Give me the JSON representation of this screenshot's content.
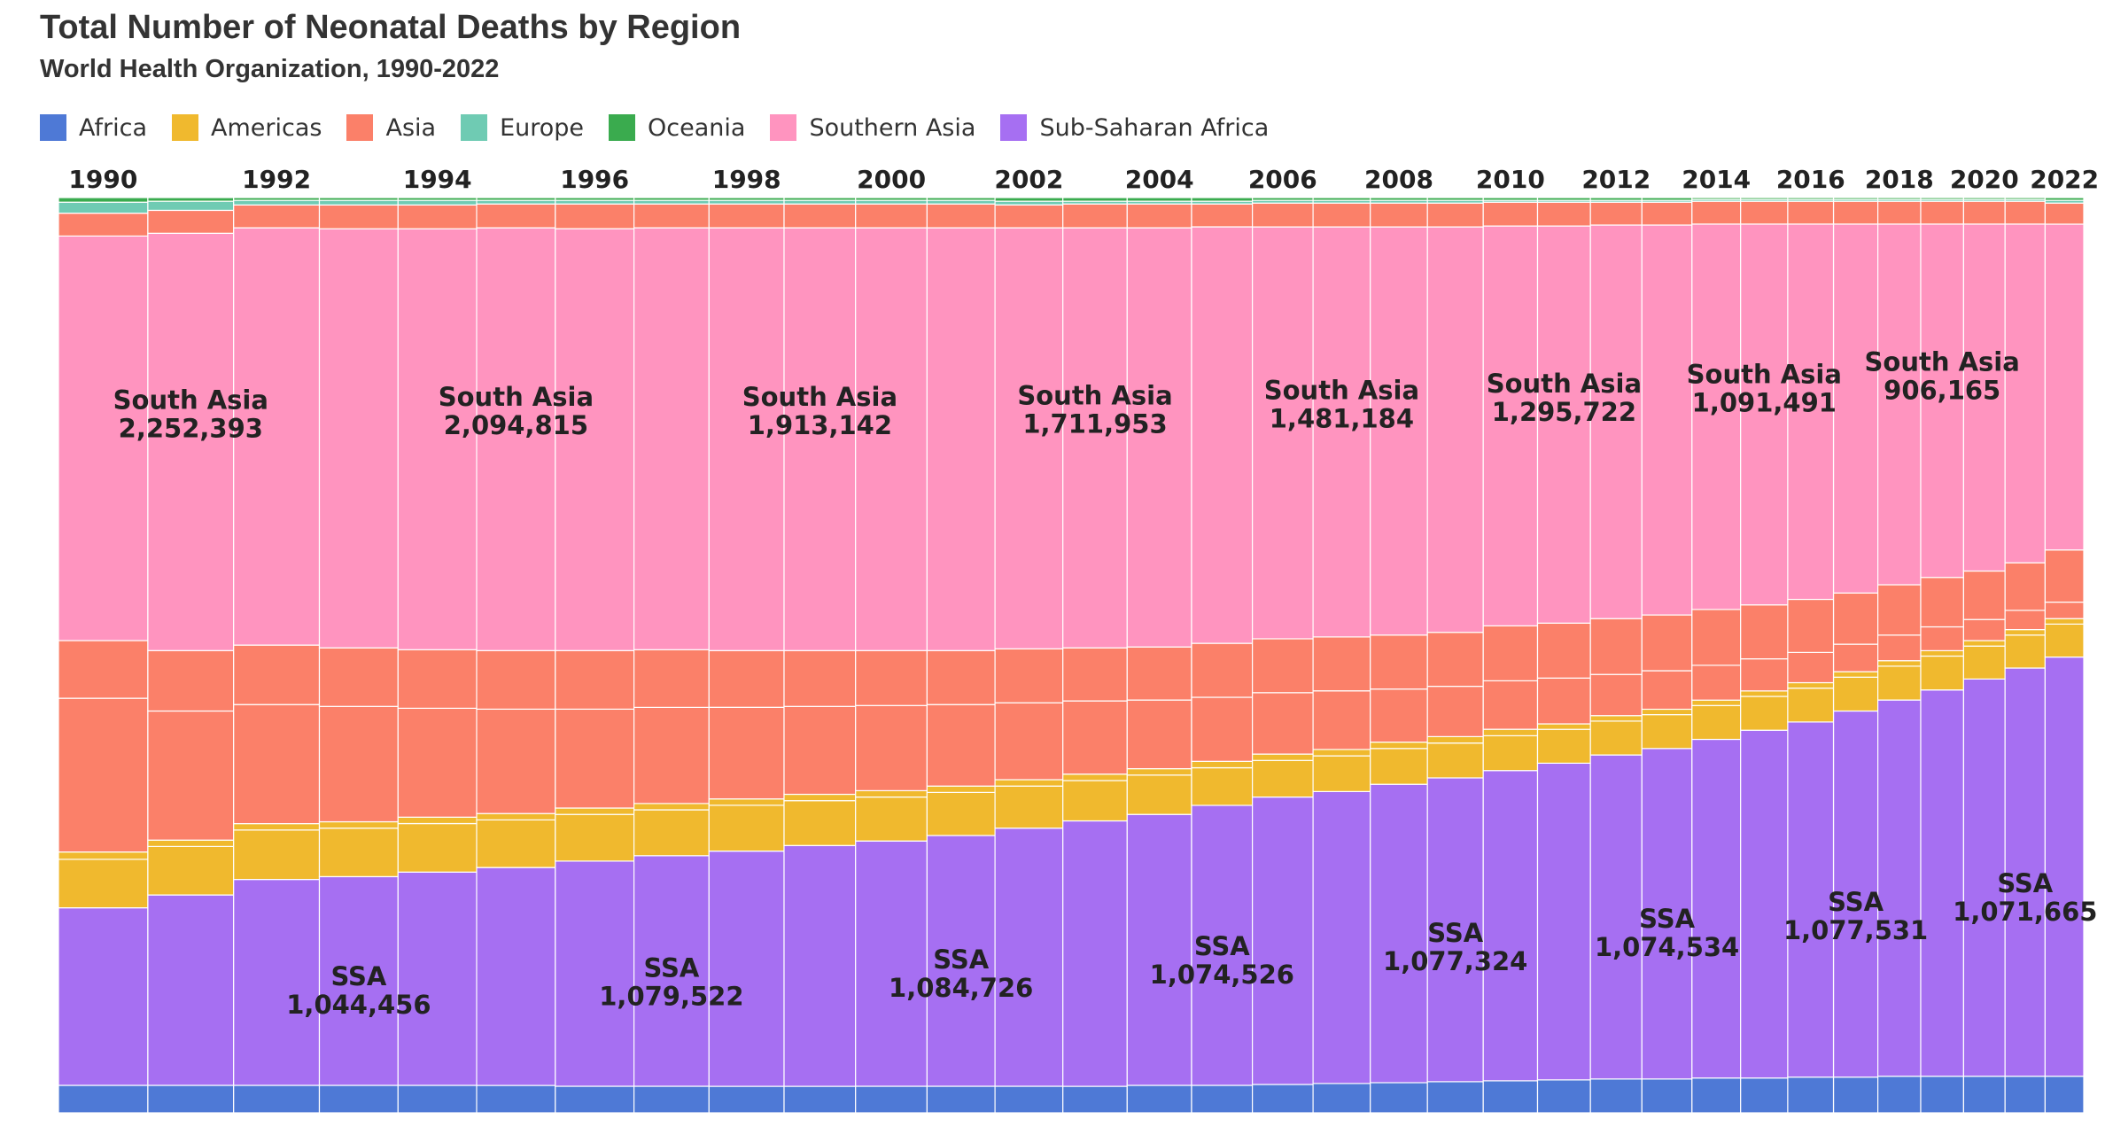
{
  "header": {
    "title": "Total Number of Neonatal Deaths by Region",
    "subtitle": "World Health Organization, 1990-2022"
  },
  "legend": [
    {
      "name": "Africa",
      "color": "#4e79d6"
    },
    {
      "name": "Americas",
      "color": "#f0b92e"
    },
    {
      "name": "Asia",
      "color": "#fb8069"
    },
    {
      "name": "Europe",
      "color": "#6fcbb3"
    },
    {
      "name": "Oceania",
      "color": "#3aab4e"
    },
    {
      "name": "Southern Asia",
      "color": "#ff94bf"
    },
    {
      "name": "Sub-Saharan Africa",
      "color": "#a66ff2"
    }
  ],
  "chart_data": {
    "type": "marimekko",
    "title": "Total Number of Neonatal Deaths by Region",
    "subtitle": "World Health Organization, 1990-2022",
    "x_tick_labels": [
      "1990",
      "1992",
      "1994",
      "1996",
      "1998",
      "2000",
      "2002",
      "2004",
      "2006",
      "2008",
      "2010",
      "2012",
      "2014",
      "2016",
      "2018",
      "2020",
      "2022"
    ],
    "years": [
      1990,
      1991,
      1992,
      1993,
      1994,
      1995,
      1996,
      1997,
      1998,
      1999,
      2000,
      2001,
      2002,
      2003,
      2004,
      2005,
      2006,
      2007,
      2008,
      2009,
      2010,
      2011,
      2012,
      2013,
      2014,
      2015,
      2016,
      2017,
      2018,
      2019,
      2020,
      2021,
      2022
    ],
    "stack_order_bottom_to_top": [
      "Africa",
      "Sub-Saharan Africa",
      "Americas",
      "Asia",
      "Southern Asia",
      "Asia",
      "Europe",
      "Oceania"
    ],
    "segments_percent_bottom_to_top": [
      {
        "year": 1990,
        "africa": 3,
        "ssa": 19.4,
        "americas": 5.3,
        "americas_thin": 0.8,
        "asia_lower": 16.8,
        "asia_mid": 6.3,
        "southern_asia": 44.2,
        "asia_top": 2.5,
        "europe": 1.2,
        "oceania": 0.5
      },
      {
        "year": 1991,
        "africa": 3,
        "ssa": 20.8,
        "americas": 5.3,
        "americas_thin": 0.7,
        "asia_lower": 14.1,
        "asia_mid": 6.6,
        "southern_asia": 45.6,
        "asia_top": 2.5,
        "europe": 1.0,
        "oceania": 0.4
      },
      {
        "year": 1992,
        "africa": 3,
        "ssa": 22.5,
        "americas": 5.4,
        "americas_thin": 0.7,
        "asia_lower": 13.0,
        "asia_mid": 6.5,
        "southern_asia": 45.6,
        "asia_top": 2.5,
        "europe": 0.5,
        "oceania": 0.3
      },
      {
        "year": 1993,
        "africa": 3,
        "ssa": 22.8,
        "americas": 5.3,
        "americas_thin": 0.7,
        "asia_lower": 12.6,
        "asia_mid": 6.4,
        "southern_asia": 45.8,
        "asia_top": 2.6,
        "europe": 0.5,
        "oceania": 0.3
      },
      {
        "year": 1994,
        "africa": 3,
        "ssa": 23.3,
        "americas": 5.3,
        "americas_thin": 0.7,
        "asia_lower": 11.9,
        "asia_mid": 6.4,
        "southern_asia": 46.0,
        "asia_top": 2.6,
        "europe": 0.5,
        "oceania": 0.3
      },
      {
        "year": 1995,
        "africa": 3,
        "ssa": 23.8,
        "americas": 5.2,
        "americas_thin": 0.7,
        "asia_lower": 11.4,
        "asia_mid": 6.4,
        "southern_asia": 46.2,
        "asia_top": 2.6,
        "europe": 0.4,
        "oceania": 0.3
      },
      {
        "year": 1996,
        "africa": 2.9,
        "ssa": 24.6,
        "americas": 5.1,
        "americas_thin": 0.7,
        "asia_lower": 10.8,
        "asia_mid": 6.4,
        "southern_asia": 46.1,
        "asia_top": 2.7,
        "europe": 0.4,
        "oceania": 0.3
      },
      {
        "year": 1997,
        "africa": 2.9,
        "ssa": 25.2,
        "americas": 5.0,
        "americas_thin": 0.7,
        "asia_lower": 10.5,
        "asia_mid": 6.3,
        "southern_asia": 46.1,
        "asia_top": 2.6,
        "europe": 0.4,
        "oceania": 0.3
      },
      {
        "year": 1998,
        "africa": 2.9,
        "ssa": 25.7,
        "americas": 5.0,
        "americas_thin": 0.7,
        "asia_lower": 10.0,
        "asia_mid": 6.2,
        "southern_asia": 46.2,
        "asia_top": 2.6,
        "europe": 0.4,
        "oceania": 0.3
      },
      {
        "year": 1999,
        "africa": 2.9,
        "ssa": 26.3,
        "americas": 4.9,
        "americas_thin": 0.7,
        "asia_lower": 9.6,
        "asia_mid": 6.1,
        "southern_asia": 46.2,
        "asia_top": 2.6,
        "europe": 0.4,
        "oceania": 0.3
      },
      {
        "year": 2000,
        "africa": 2.9,
        "ssa": 26.8,
        "americas": 4.8,
        "americas_thin": 0.7,
        "asia_lower": 9.3,
        "asia_mid": 6.0,
        "southern_asia": 46.2,
        "asia_top": 2.6,
        "europe": 0.4,
        "oceania": 0.3
      },
      {
        "year": 2001,
        "africa": 2.9,
        "ssa": 27.4,
        "americas": 4.7,
        "americas_thin": 0.7,
        "asia_lower": 8.9,
        "asia_mid": 5.9,
        "southern_asia": 46.2,
        "asia_top": 2.6,
        "europe": 0.4,
        "oceania": 0.3
      },
      {
        "year": 2002,
        "africa": 2.9,
        "ssa": 28.2,
        "americas": 4.6,
        "americas_thin": 0.7,
        "asia_lower": 8.4,
        "asia_mid": 5.9,
        "southern_asia": 46.0,
        "asia_top": 2.5,
        "europe": 0.4,
        "oceania": 0.4
      },
      {
        "year": 2003,
        "africa": 2.9,
        "ssa": 29.0,
        "americas": 4.4,
        "americas_thin": 0.7,
        "asia_lower": 8.0,
        "asia_mid": 5.8,
        "southern_asia": 45.9,
        "asia_top": 2.6,
        "europe": 0.3,
        "oceania": 0.4
      },
      {
        "year": 2004,
        "africa": 3.0,
        "ssa": 29.6,
        "americas": 4.3,
        "americas_thin": 0.7,
        "asia_lower": 7.5,
        "asia_mid": 5.8,
        "southern_asia": 45.8,
        "asia_top": 2.6,
        "europe": 0.3,
        "oceania": 0.4
      },
      {
        "year": 2005,
        "africa": 3.0,
        "ssa": 30.6,
        "americas": 4.1,
        "americas_thin": 0.7,
        "asia_lower": 7.0,
        "asia_mid": 5.9,
        "southern_asia": 45.5,
        "asia_top": 2.5,
        "europe": 0.3,
        "oceania": 0.4
      },
      {
        "year": 2006,
        "africa": 3.1,
        "ssa": 31.4,
        "americas": 4.0,
        "americas_thin": 0.7,
        "asia_lower": 6.7,
        "asia_mid": 5.9,
        "southern_asia": 45.0,
        "asia_top": 2.6,
        "europe": 0.3,
        "oceania": 0.3
      },
      {
        "year": 2007,
        "africa": 3.2,
        "ssa": 31.9,
        "americas": 3.9,
        "americas_thin": 0.7,
        "asia_lower": 6.4,
        "asia_mid": 5.9,
        "southern_asia": 44.8,
        "asia_top": 2.6,
        "europe": 0.3,
        "oceania": 0.3
      },
      {
        "year": 2008,
        "africa": 3.3,
        "ssa": 32.6,
        "americas": 3.9,
        "americas_thin": 0.7,
        "asia_lower": 5.8,
        "asia_mid": 5.9,
        "southern_asia": 44.6,
        "asia_top": 2.6,
        "europe": 0.3,
        "oceania": 0.3
      },
      {
        "year": 2009,
        "africa": 3.4,
        "ssa": 33.2,
        "americas": 3.8,
        "americas_thin": 0.7,
        "asia_lower": 5.5,
        "asia_mid": 5.9,
        "southern_asia": 44.3,
        "asia_top": 2.6,
        "europe": 0.3,
        "oceania": 0.3
      },
      {
        "year": 2010,
        "africa": 3.5,
        "ssa": 33.9,
        "americas": 3.8,
        "americas_thin": 0.7,
        "asia_lower": 5.3,
        "asia_mid": 6.0,
        "southern_asia": 43.7,
        "asia_top": 2.6,
        "europe": 0.2,
        "oceania": 0.3
      },
      {
        "year": 2011,
        "africa": 3.6,
        "ssa": 34.6,
        "americas": 3.7,
        "americas_thin": 0.6,
        "asia_lower": 5.0,
        "asia_mid": 6.0,
        "southern_asia": 43.4,
        "asia_top": 2.6,
        "europe": 0.2,
        "oceania": 0.3
      },
      {
        "year": 2012,
        "africa": 3.7,
        "ssa": 35.4,
        "americas": 3.7,
        "americas_thin": 0.6,
        "asia_lower": 4.5,
        "asia_mid": 6.1,
        "southern_asia": 43.0,
        "asia_top": 2.5,
        "europe": 0.2,
        "oceania": 0.3
      },
      {
        "year": 2013,
        "africa": 3.7,
        "ssa": 36.1,
        "americas": 3.7,
        "americas_thin": 0.6,
        "asia_lower": 4.2,
        "asia_mid": 6.1,
        "southern_asia": 42.6,
        "asia_top": 2.5,
        "europe": 0.2,
        "oceania": 0.3
      },
      {
        "year": 2014,
        "africa": 3.8,
        "ssa": 37.0,
        "americas": 3.7,
        "americas_thin": 0.6,
        "asia_lower": 3.8,
        "asia_mid": 6.1,
        "southern_asia": 42.1,
        "asia_top": 2.5,
        "europe": 0.2,
        "oceania": 0.2
      },
      {
        "year": 2015,
        "africa": 3.8,
        "ssa": 38.0,
        "americas": 3.7,
        "americas_thin": 0.6,
        "asia_lower": 3.5,
        "asia_mid": 5.9,
        "southern_asia": 41.6,
        "asia_top": 2.5,
        "europe": 0.2,
        "oceania": 0.2
      },
      {
        "year": 2016,
        "africa": 3.9,
        "ssa": 38.8,
        "americas": 3.7,
        "americas_thin": 0.6,
        "asia_lower": 3.3,
        "asia_mid": 5.8,
        "southern_asia": 41.0,
        "asia_top": 2.5,
        "europe": 0.2,
        "oceania": 0.2
      },
      {
        "year": 2017,
        "africa": 3.9,
        "ssa": 40.0,
        "americas": 3.7,
        "americas_thin": 0.6,
        "asia_lower": 3.0,
        "asia_mid": 5.6,
        "southern_asia": 40.3,
        "asia_top": 2.5,
        "europe": 0.2,
        "oceania": 0.2
      },
      {
        "year": 2018,
        "africa": 4.0,
        "ssa": 41.1,
        "americas": 3.7,
        "americas_thin": 0.6,
        "asia_lower": 2.8,
        "asia_mid": 5.5,
        "southern_asia": 39.4,
        "asia_top": 2.5,
        "europe": 0.2,
        "oceania": 0.2
      },
      {
        "year": 2019,
        "africa": 4.0,
        "ssa": 42.2,
        "americas": 3.7,
        "americas_thin": 0.6,
        "asia_lower": 2.6,
        "asia_mid": 5.4,
        "southern_asia": 38.6,
        "asia_top": 2.5,
        "europe": 0.2,
        "oceania": 0.2
      },
      {
        "year": 2020,
        "africa": 4.0,
        "ssa": 43.4,
        "americas": 3.6,
        "americas_thin": 0.6,
        "asia_lower": 2.3,
        "asia_mid": 5.3,
        "southern_asia": 37.9,
        "asia_top": 2.5,
        "europe": 0.2,
        "oceania": 0.2
      },
      {
        "year": 2021,
        "africa": 4.0,
        "ssa": 44.6,
        "americas": 3.6,
        "americas_thin": 0.6,
        "asia_lower": 2.1,
        "asia_mid": 5.2,
        "southern_asia": 37.0,
        "asia_top": 2.5,
        "europe": 0.2,
        "oceania": 0.2
      },
      {
        "year": 2022,
        "africa": 4.0,
        "ssa": 45.8,
        "americas": 3.6,
        "americas_thin": 0.6,
        "asia_lower": 1.8,
        "asia_mid": 5.7,
        "southern_asia": 35.6,
        "asia_top": 2.3,
        "europe": 0.3,
        "oceania": 0.3
      }
    ],
    "column_width_weights": [
      1.25,
      1.2,
      1.2,
      1.1,
      1.1,
      1.1,
      1.1,
      1.05,
      1.05,
      1.0,
      1.0,
      0.95,
      0.95,
      0.9,
      0.9,
      0.85,
      0.85,
      0.8,
      0.8,
      0.78,
      0.76,
      0.74,
      0.72,
      0.7,
      0.68,
      0.66,
      0.64,
      0.62,
      0.6,
      0.6,
      0.58,
      0.56,
      0.54
    ],
    "annotations": [
      {
        "label": "South Asia",
        "value": "2,252,393",
        "year": 1991
      },
      {
        "label": "South Asia",
        "value": "2,094,815",
        "year": 1995
      },
      {
        "label": "South Asia",
        "value": "1,913,142",
        "year": 1999
      },
      {
        "label": "South Asia",
        "value": "1,711,953",
        "year": 2003
      },
      {
        "label": "South Asia",
        "value": "1,481,184",
        "year": 2007
      },
      {
        "label": "South Asia",
        "value": "1,295,722",
        "year": 2011
      },
      {
        "label": "South Asia",
        "value": "1,091,491",
        "year": 2015
      },
      {
        "label": "South Asia",
        "value": "906,165",
        "year": 2019
      },
      {
        "label": "SSA",
        "value": "1,044,456",
        "year": 1993
      },
      {
        "label": "SSA",
        "value": "1,079,522",
        "year": 1997
      },
      {
        "label": "SSA",
        "value": "1,084,726",
        "year": 2001
      },
      {
        "label": "SSA",
        "value": "1,074,526",
        "year": 2005
      },
      {
        "label": "SSA",
        "value": "1,077,324",
        "year": 2009
      },
      {
        "label": "SSA",
        "value": "1,074,534",
        "year": 2013
      },
      {
        "label": "SSA",
        "value": "1,077,531",
        "year": 2017
      },
      {
        "label": "SSA",
        "value": "1,071,665",
        "year": 2021
      }
    ]
  }
}
